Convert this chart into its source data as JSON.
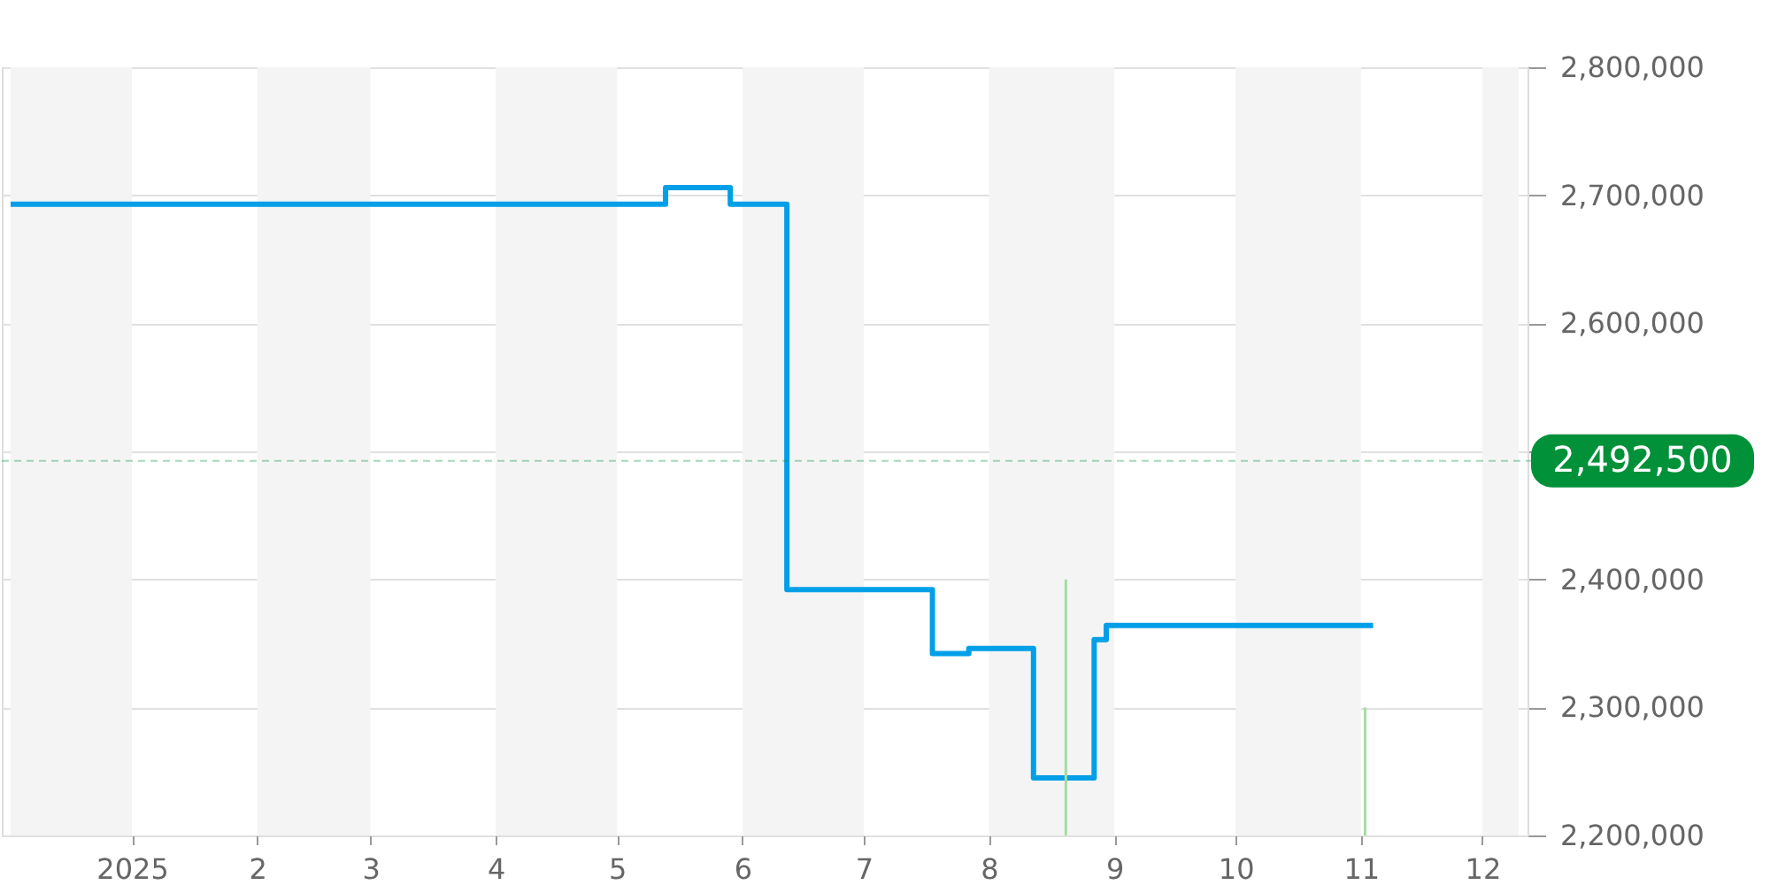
{
  "chart_data": {
    "type": "step",
    "series": [
      {
        "color": "#009fe8",
        "x": [
          "2024-12-02",
          "2025-05-13",
          "2025-05-29",
          "2025-06-12",
          "2025-07-18",
          "2025-07-27",
          "2025-08-12",
          "2025-08-27",
          "2025-08-30",
          "2025-11-04"
        ],
        "values": [
          2693000,
          2706000,
          2693000,
          2392000,
          2342000,
          2346000,
          2245000,
          2353000,
          2364000,
          2364000
        ]
      },
      {
        "type": "bar",
        "color": "#a3dca3",
        "x": [
          "2025-08-20",
          "2025-11-02"
        ],
        "values": [
          2400000,
          2300000
        ]
      }
    ],
    "xlim": [
      "2024-12-02",
      "2025-12-10"
    ],
    "xticks": [
      {
        "value": "2025-01-01",
        "label": "2025"
      },
      {
        "value": "2025-02-01",
        "label": "2"
      },
      {
        "value": "2025-03-01",
        "label": "3"
      },
      {
        "value": "2025-04-01",
        "label": "4"
      },
      {
        "value": "2025-05-01",
        "label": "5"
      },
      {
        "value": "2025-06-01",
        "label": "6"
      },
      {
        "value": "2025-07-01",
        "label": "7"
      },
      {
        "value": "2025-08-01",
        "label": "8"
      },
      {
        "value": "2025-09-01",
        "label": "9"
      },
      {
        "value": "2025-10-01",
        "label": "10"
      },
      {
        "value": "2025-11-01",
        "label": "11"
      },
      {
        "value": "2025-12-01",
        "label": "12"
      }
    ],
    "ylim": [
      2200000,
      2800000
    ],
    "yticks": [
      {
        "value": 2200000,
        "label": "2,200,000"
      },
      {
        "value": 2300000,
        "label": "2,300,000"
      },
      {
        "value": 2400000,
        "label": "2,400,000"
      },
      {
        "value": 2500000,
        "label": null
      },
      {
        "value": 2600000,
        "label": "2,600,000"
      },
      {
        "value": 2700000,
        "label": "2,700,000"
      },
      {
        "value": 2800000,
        "label": "2,800,000"
      }
    ],
    "bands": [
      {
        "axis": "x",
        "from": "2024-12-02",
        "to": "2025-01-01",
        "color": "#f4f4f4"
      },
      {
        "axis": "x",
        "from": "2025-02-01",
        "to": "2025-03-01",
        "color": "#f4f4f4"
      },
      {
        "axis": "x",
        "from": "2025-04-01",
        "to": "2025-05-01",
        "color": "#f4f4f4"
      },
      {
        "axis": "x",
        "from": "2025-06-01",
        "to": "2025-07-01",
        "color": "#f4f4f4"
      },
      {
        "axis": "x",
        "from": "2025-08-01",
        "to": "2025-09-01",
        "color": "#f4f4f4"
      },
      {
        "axis": "x",
        "from": "2025-10-01",
        "to": "2025-11-01",
        "color": "#f4f4f4"
      },
      {
        "axis": "x",
        "from": "2025-12-01",
        "to": "2025-12-10",
        "color": "#f4f4f4"
      }
    ],
    "ref_lines": [
      {
        "axis": "y",
        "value": 2492500,
        "label": "2,492,500",
        "color": "#009139"
      }
    ],
    "grid": "y"
  }
}
